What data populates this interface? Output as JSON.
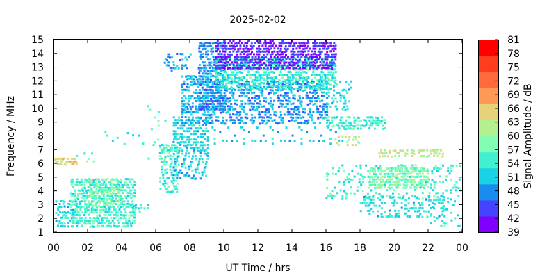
{
  "chart_data": {
    "type": "heatmap",
    "title": "2025-02-02",
    "xlabel": "UT Time / hrs",
    "ylabel": "Frequency / MHz",
    "colorbar_label": "Signal Amplitude / dB",
    "xlim": [
      0,
      24
    ],
    "ylim": [
      1,
      15
    ],
    "x_ticks": [
      "00",
      "02",
      "04",
      "06",
      "08",
      "10",
      "12",
      "14",
      "16",
      "18",
      "20",
      "22",
      "00"
    ],
    "y_ticks": [
      "1",
      "2",
      "3",
      "4",
      "5",
      "6",
      "7",
      "8",
      "9",
      "10",
      "11",
      "12",
      "13",
      "14",
      "15"
    ],
    "colorbar_ticks": [
      "39",
      "42",
      "45",
      "48",
      "51",
      "54",
      "57",
      "60",
      "63",
      "66",
      "69",
      "72",
      "75",
      "78",
      "81"
    ],
    "colorbar_range": [
      39,
      81
    ],
    "colorbar_colors": [
      "#8000ff",
      "#4444ff",
      "#1a8cf0",
      "#1ad2e6",
      "#40f0d0",
      "#80ffb4",
      "#b4f090",
      "#e6d278",
      "#ff9a55",
      "#ff6a3c",
      "#ff3c1e",
      "#ff0000"
    ],
    "grid": false,
    "legend": "colorbar-right",
    "regions": [
      {
        "x": [
          0.0,
          1.4
        ],
        "y": [
          1.5,
          3.5
        ],
        "amplitude": 52,
        "density": 0.45
      },
      {
        "x": [
          0.0,
          1.4
        ],
        "y": [
          6.0,
          6.6
        ],
        "amplitude": 64,
        "density": 0.8
      },
      {
        "x": [
          1.2,
          2.5
        ],
        "y": [
          6.2,
          7.0
        ],
        "amplitude": 57,
        "density": 0.3
      },
      {
        "x": [
          1.0,
          4.8
        ],
        "y": [
          1.5,
          5.0
        ],
        "amplitude": 54,
        "density": 0.6
      },
      {
        "x": [
          2.0,
          4.0
        ],
        "y": [
          3.0,
          5.0
        ],
        "amplitude": 58,
        "density": 0.5
      },
      {
        "x": [
          3.0,
          5.5
        ],
        "y": [
          7.5,
          8.5
        ],
        "amplitude": 53,
        "density": 0.15
      },
      {
        "x": [
          4.5,
          5.5
        ],
        "y": [
          2.6,
          3.2
        ],
        "amplitude": 52,
        "density": 0.4
      },
      {
        "x": [
          5.5,
          6.5
        ],
        "y": [
          6.0,
          10.5
        ],
        "amplitude": 56,
        "density": 0.1
      },
      {
        "x": [
          6.2,
          7.2
        ],
        "y": [
          4.0,
          7.5
        ],
        "amplitude": 54,
        "density": 0.5
      },
      {
        "x": [
          6.5,
          8.0
        ],
        "y": [
          12.8,
          14.0
        ],
        "amplitude": 48,
        "density": 0.35
      },
      {
        "x": [
          7.0,
          9.0
        ],
        "y": [
          5.0,
          9.5
        ],
        "amplitude": 51,
        "density": 0.45
      },
      {
        "x": [
          7.5,
          9.0
        ],
        "y": [
          9.0,
          12.5
        ],
        "amplitude": 49,
        "density": 0.55
      },
      {
        "x": [
          8.5,
          10.0
        ],
        "y": [
          10.0,
          14.8
        ],
        "amplitude": 47,
        "density": 0.6
      },
      {
        "x": [
          9.0,
          17.0
        ],
        "y": [
          7.5,
          9.5
        ],
        "amplitude": 50,
        "density": 0.12
      },
      {
        "x": [
          9.0,
          16.0
        ],
        "y": [
          9.0,
          12.0
        ],
        "amplitude": 48,
        "density": 0.45
      },
      {
        "x": [
          9.5,
          16.5
        ],
        "y": [
          11.5,
          13.8
        ],
        "amplitude": 53,
        "density": 0.6
      },
      {
        "x": [
          9.5,
          16.5
        ],
        "y": [
          13.0,
          15.0
        ],
        "amplitude": 42,
        "density": 0.65
      },
      {
        "x": [
          16.0,
          17.5
        ],
        "y": [
          10.0,
          12.0
        ],
        "amplitude": 52,
        "density": 0.35
      },
      {
        "x": [
          16.0,
          19.5
        ],
        "y": [
          8.6,
          9.4
        ],
        "amplitude": 54,
        "density": 0.55
      },
      {
        "x": [
          16.5,
          18.0
        ],
        "y": [
          7.4,
          8.2
        ],
        "amplitude": 62,
        "density": 0.35
      },
      {
        "x": [
          16.0,
          24.0
        ],
        "y": [
          3.5,
          6.0
        ],
        "amplitude": 54,
        "density": 0.3
      },
      {
        "x": [
          18.5,
          22.0
        ],
        "y": [
          4.3,
          5.8
        ],
        "amplitude": 58,
        "density": 0.7
      },
      {
        "x": [
          18.0,
          23.0
        ],
        "y": [
          2.2,
          3.8
        ],
        "amplitude": 52,
        "density": 0.35
      },
      {
        "x": [
          19.0,
          23.0
        ],
        "y": [
          6.6,
          7.2
        ],
        "amplitude": 62,
        "density": 0.45
      },
      {
        "x": [
          22.0,
          24.0
        ],
        "y": [
          1.5,
          4.0
        ],
        "amplitude": 53,
        "density": 0.2
      }
    ]
  }
}
